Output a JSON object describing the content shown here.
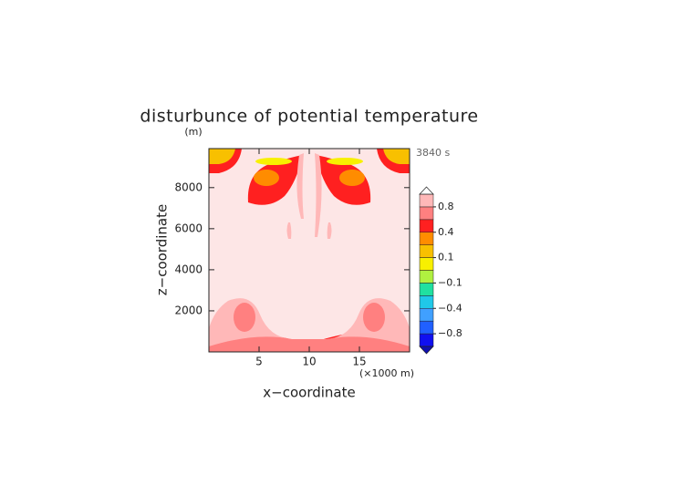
{
  "chart_data": {
    "type": "contour",
    "title": "disturbunce of potential temperature",
    "time_label": "3840 s",
    "x_label": "x−coordinate",
    "x_unit": "(×1000 m)",
    "y_label": "z−coordinate",
    "y_unit": "(m)",
    "xlim": [
      0,
      20
    ],
    "xticks": [
      5,
      10,
      15
    ],
    "ylim": [
      0,
      9900
    ],
    "yticks": [
      2000,
      4000,
      6000,
      8000
    ],
    "levels": [
      -1,
      -0.8,
      -0.6,
      -0.4,
      -0.2,
      -0.1,
      0,
      0.1,
      0.2,
      0.4,
      0.6,
      0.8,
      1
    ],
    "colors": [
      "#1010f0",
      "#2060ff",
      "#40a0ff",
      "#20c8e8",
      "#20e0a0",
      "#b0f040",
      "#f8f000",
      "#f8c000",
      "#ff8c00",
      "#ff2020",
      "#ff8080",
      "#ffb8b8"
    ],
    "colorbar_ticks": [
      {
        "value": 0.8,
        "label": "0.8"
      },
      {
        "value": 0.4,
        "label": "0.4"
      },
      {
        "value": 0.1,
        "label": "0.1"
      },
      {
        "value": -0.1,
        "label": "−0.1"
      },
      {
        "value": -0.4,
        "label": "−0.4"
      },
      {
        "value": -0.8,
        "label": "−0.8"
      }
    ]
  }
}
